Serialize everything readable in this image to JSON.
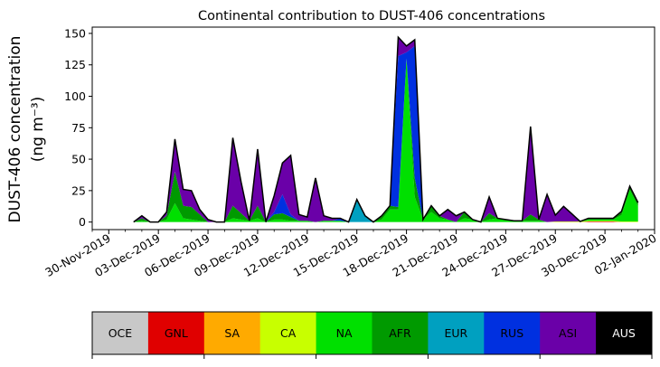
{
  "chart_data": {
    "type": "area",
    "stacked": true,
    "title": "Continental contribution to DUST-406 concentrations",
    "ylabel_line1": "DUST-406 concentration",
    "ylabel_line2": "(ng m⁻³)",
    "xlabel": "",
    "ylim": [
      -6,
      155
    ],
    "xlim": [
      "2019-11-29",
      "2020-01-02"
    ],
    "grid": false,
    "yticks": [
      0,
      25,
      50,
      75,
      100,
      125,
      150
    ],
    "xticks": [
      "30-Nov-2019",
      "03-Dec-2019",
      "06-Dec-2019",
      "09-Dec-2019",
      "12-Dec-2019",
      "15-Dec-2019",
      "18-Dec-2019",
      "21-Dec-2019",
      "24-Dec-2019",
      "27-Dec-2019",
      "30-Dec-2019",
      "02-Jan-2020"
    ],
    "x": [
      "2019-12-01 12:00",
      "2019-12-02 00:00",
      "2019-12-02 12:00",
      "2019-12-03 00:00",
      "2019-12-03 12:00",
      "2019-12-04 00:00",
      "2019-12-04 12:00",
      "2019-12-05 00:00",
      "2019-12-05 12:00",
      "2019-12-06 00:00",
      "2019-12-06 12:00",
      "2019-12-07 00:00",
      "2019-12-07 12:00",
      "2019-12-08 00:00",
      "2019-12-08 12:00",
      "2019-12-09 00:00",
      "2019-12-09 12:00",
      "2019-12-10 00:00",
      "2019-12-10 12:00",
      "2019-12-11 00:00",
      "2019-12-11 12:00",
      "2019-12-12 00:00",
      "2019-12-12 12:00",
      "2019-12-13 00:00",
      "2019-12-13 12:00",
      "2019-12-14 00:00",
      "2019-12-14 12:00",
      "2019-12-15 00:00",
      "2019-12-15 12:00",
      "2019-12-16 00:00",
      "2019-12-16 12:00",
      "2019-12-17 00:00",
      "2019-12-17 12:00",
      "2019-12-18 00:00",
      "2019-12-18 12:00",
      "2019-12-19 00:00",
      "2019-12-19 12:00",
      "2019-12-20 00:00",
      "2019-12-20 12:00",
      "2019-12-21 00:00",
      "2019-12-21 12:00",
      "2019-12-22 00:00",
      "2019-12-22 12:00",
      "2019-12-23 00:00",
      "2019-12-23 12:00",
      "2019-12-24 00:00",
      "2019-12-24 12:00",
      "2019-12-25 00:00",
      "2019-12-25 12:00",
      "2019-12-26 00:00",
      "2019-12-26 12:00",
      "2019-12-27 00:00",
      "2019-12-27 12:00",
      "2019-12-28 00:00",
      "2019-12-28 12:00",
      "2019-12-29 00:00",
      "2019-12-29 12:00",
      "2019-12-30 00:00",
      "2019-12-30 12:00",
      "2019-12-31 00:00",
      "2019-12-31 12:00",
      "2020-01-01 00:00"
    ],
    "series": [
      {
        "name": "OCE",
        "color": "#c8c8c8",
        "values": [
          0,
          0,
          0,
          0,
          0,
          0,
          0,
          0,
          0,
          0,
          0,
          0,
          0,
          0,
          0,
          0,
          0,
          0,
          0,
          0,
          0,
          0,
          0,
          0,
          0,
          0,
          0,
          0,
          0,
          0,
          0,
          0,
          0,
          0,
          0,
          0,
          0,
          0,
          0,
          0,
          0,
          0,
          0,
          0,
          0,
          0,
          0,
          0,
          0,
          0,
          0,
          0,
          0,
          0,
          0,
          0,
          0,
          0,
          0,
          0,
          0,
          0
        ]
      },
      {
        "name": "GNL",
        "color": "#e00000",
        "values": [
          0,
          0,
          0,
          0,
          0,
          0,
          0,
          0,
          0,
          0,
          0,
          0,
          0,
          0,
          0,
          0,
          0,
          0,
          0,
          0,
          0,
          0,
          0,
          0,
          0,
          0,
          0,
          0,
          0,
          0,
          0,
          0,
          0,
          0,
          0,
          0,
          0,
          0,
          0,
          0,
          0,
          0,
          0,
          0,
          0,
          0,
          0,
          0,
          0,
          0,
          0,
          0,
          0,
          0,
          0,
          0.5,
          0.5,
          0.5,
          0.5,
          0,
          0,
          0
        ]
      },
      {
        "name": "SA",
        "color": "#ffaa00",
        "values": [
          0,
          0,
          0,
          0,
          0,
          0,
          0,
          0,
          0,
          0,
          0,
          0,
          0,
          0,
          0,
          0,
          0,
          0,
          0,
          0,
          0,
          0,
          0,
          0,
          0,
          0,
          0,
          0,
          0,
          0,
          0,
          0,
          0,
          0,
          0,
          0,
          0,
          0,
          0,
          0,
          0,
          0,
          0,
          0,
          0,
          0,
          0,
          0,
          0,
          0,
          0,
          0,
          0,
          0,
          0,
          0,
          0,
          0,
          0,
          0,
          0,
          0
        ]
      },
      {
        "name": "CA",
        "color": "#c8ff00",
        "values": [
          0,
          0,
          0,
          0,
          0,
          0,
          0,
          0,
          0,
          0,
          0,
          0,
          0,
          0,
          0,
          0,
          0,
          0,
          0,
          0,
          0,
          0,
          0,
          0,
          0,
          0,
          0,
          0,
          0,
          0,
          0,
          0,
          0,
          0,
          0,
          0,
          0,
          0,
          0,
          0,
          0,
          0,
          0,
          0,
          0,
          0,
          0,
          0,
          0,
          0,
          0,
          0.5,
          0.5,
          0.5,
          0.5,
          0.5,
          0.5,
          0.5,
          0.5,
          0.5,
          0.5,
          0.5
        ]
      },
      {
        "name": "NA",
        "color": "#00e000",
        "values": [
          0,
          1,
          0,
          0,
          2,
          15,
          3,
          2,
          1,
          0,
          0,
          0,
          3,
          2,
          1,
          3,
          0,
          2,
          2,
          1,
          1,
          1,
          0,
          1,
          1,
          1,
          0,
          0,
          0,
          0,
          2,
          10,
          10,
          130,
          20,
          2,
          8,
          3,
          2,
          0,
          3,
          2,
          0,
          2,
          3,
          2,
          1,
          1,
          1,
          1,
          0,
          0,
          0,
          0,
          0,
          1,
          1,
          1,
          1,
          5,
          25,
          12
        ]
      },
      {
        "name": "AFR",
        "color": "#009a00",
        "values": [
          0,
          2,
          0,
          0,
          3,
          25,
          10,
          10,
          5,
          0,
          0,
          0,
          10,
          5,
          0,
          10,
          0,
          4,
          5,
          3,
          0,
          0,
          0,
          0,
          0,
          0,
          0,
          0,
          0,
          0,
          3,
          3,
          2,
          0,
          15,
          0,
          5,
          2,
          0,
          0,
          5,
          0,
          0,
          5,
          0,
          0,
          0,
          0,
          5,
          1,
          0,
          0,
          0,
          0,
          0,
          1,
          1,
          1,
          1,
          3,
          3,
          3
        ]
      },
      {
        "name": "EUR",
        "color": "#00a0c0",
        "values": [
          0,
          0,
          0,
          0,
          0,
          0,
          0,
          0,
          0,
          0,
          0,
          0,
          0,
          0,
          0,
          0,
          0,
          0,
          0,
          0,
          0,
          0,
          0,
          0,
          0,
          0,
          0,
          18,
          5,
          0,
          0,
          0,
          0,
          0,
          0,
          0,
          0,
          0,
          0,
          0,
          0,
          0,
          0,
          0,
          0,
          0,
          0,
          0,
          0,
          0,
          0,
          0,
          0,
          0,
          0,
          0,
          0,
          0,
          0,
          0,
          0,
          0
        ]
      },
      {
        "name": "RUS",
        "color": "#0030e0",
        "values": [
          0,
          0,
          0,
          0,
          0,
          0,
          0,
          0,
          0,
          0,
          0,
          0,
          0,
          0,
          0,
          0,
          0,
          2,
          15,
          2,
          0,
          0,
          0,
          0,
          0,
          2,
          0,
          0,
          0,
          0,
          0,
          0,
          120,
          5,
          105,
          0,
          0,
          0,
          0,
          0,
          0,
          0,
          0,
          0,
          0,
          0,
          0,
          0,
          0,
          0,
          0,
          0,
          0,
          0,
          0,
          0,
          0,
          0,
          0,
          0,
          0,
          0
        ]
      },
      {
        "name": "ASI",
        "color": "#6a00a8",
        "values": [
          0,
          2,
          0,
          0,
          3,
          26,
          13,
          13,
          4,
          2,
          0,
          0,
          54,
          25,
          0,
          45,
          0,
          13,
          25,
          47,
          5,
          3,
          35,
          4,
          2,
          0,
          0,
          0,
          0,
          0,
          0,
          0,
          15,
          5,
          5,
          0,
          0,
          0,
          8,
          5,
          0,
          0,
          0,
          13,
          0,
          0,
          0,
          0,
          70,
          0,
          22,
          5,
          12,
          6,
          0,
          0,
          0,
          0,
          0,
          0,
          0,
          0
        ]
      },
      {
        "name": "AUS",
        "color": "#000000",
        "values": [
          0,
          0,
          0,
          0,
          0,
          0,
          0,
          0,
          0,
          0,
          0,
          0,
          0,
          0,
          0,
          0,
          0,
          0,
          0,
          0,
          0,
          0,
          0,
          0,
          0,
          0,
          0,
          0,
          0,
          0,
          0,
          0,
          0,
          0,
          0,
          0,
          0,
          0,
          0,
          0,
          0,
          0,
          0,
          0,
          0,
          0,
          0,
          0,
          0,
          0,
          0,
          0,
          0,
          0,
          0,
          0,
          0,
          0,
          0,
          0,
          0,
          0
        ]
      }
    ]
  }
}
